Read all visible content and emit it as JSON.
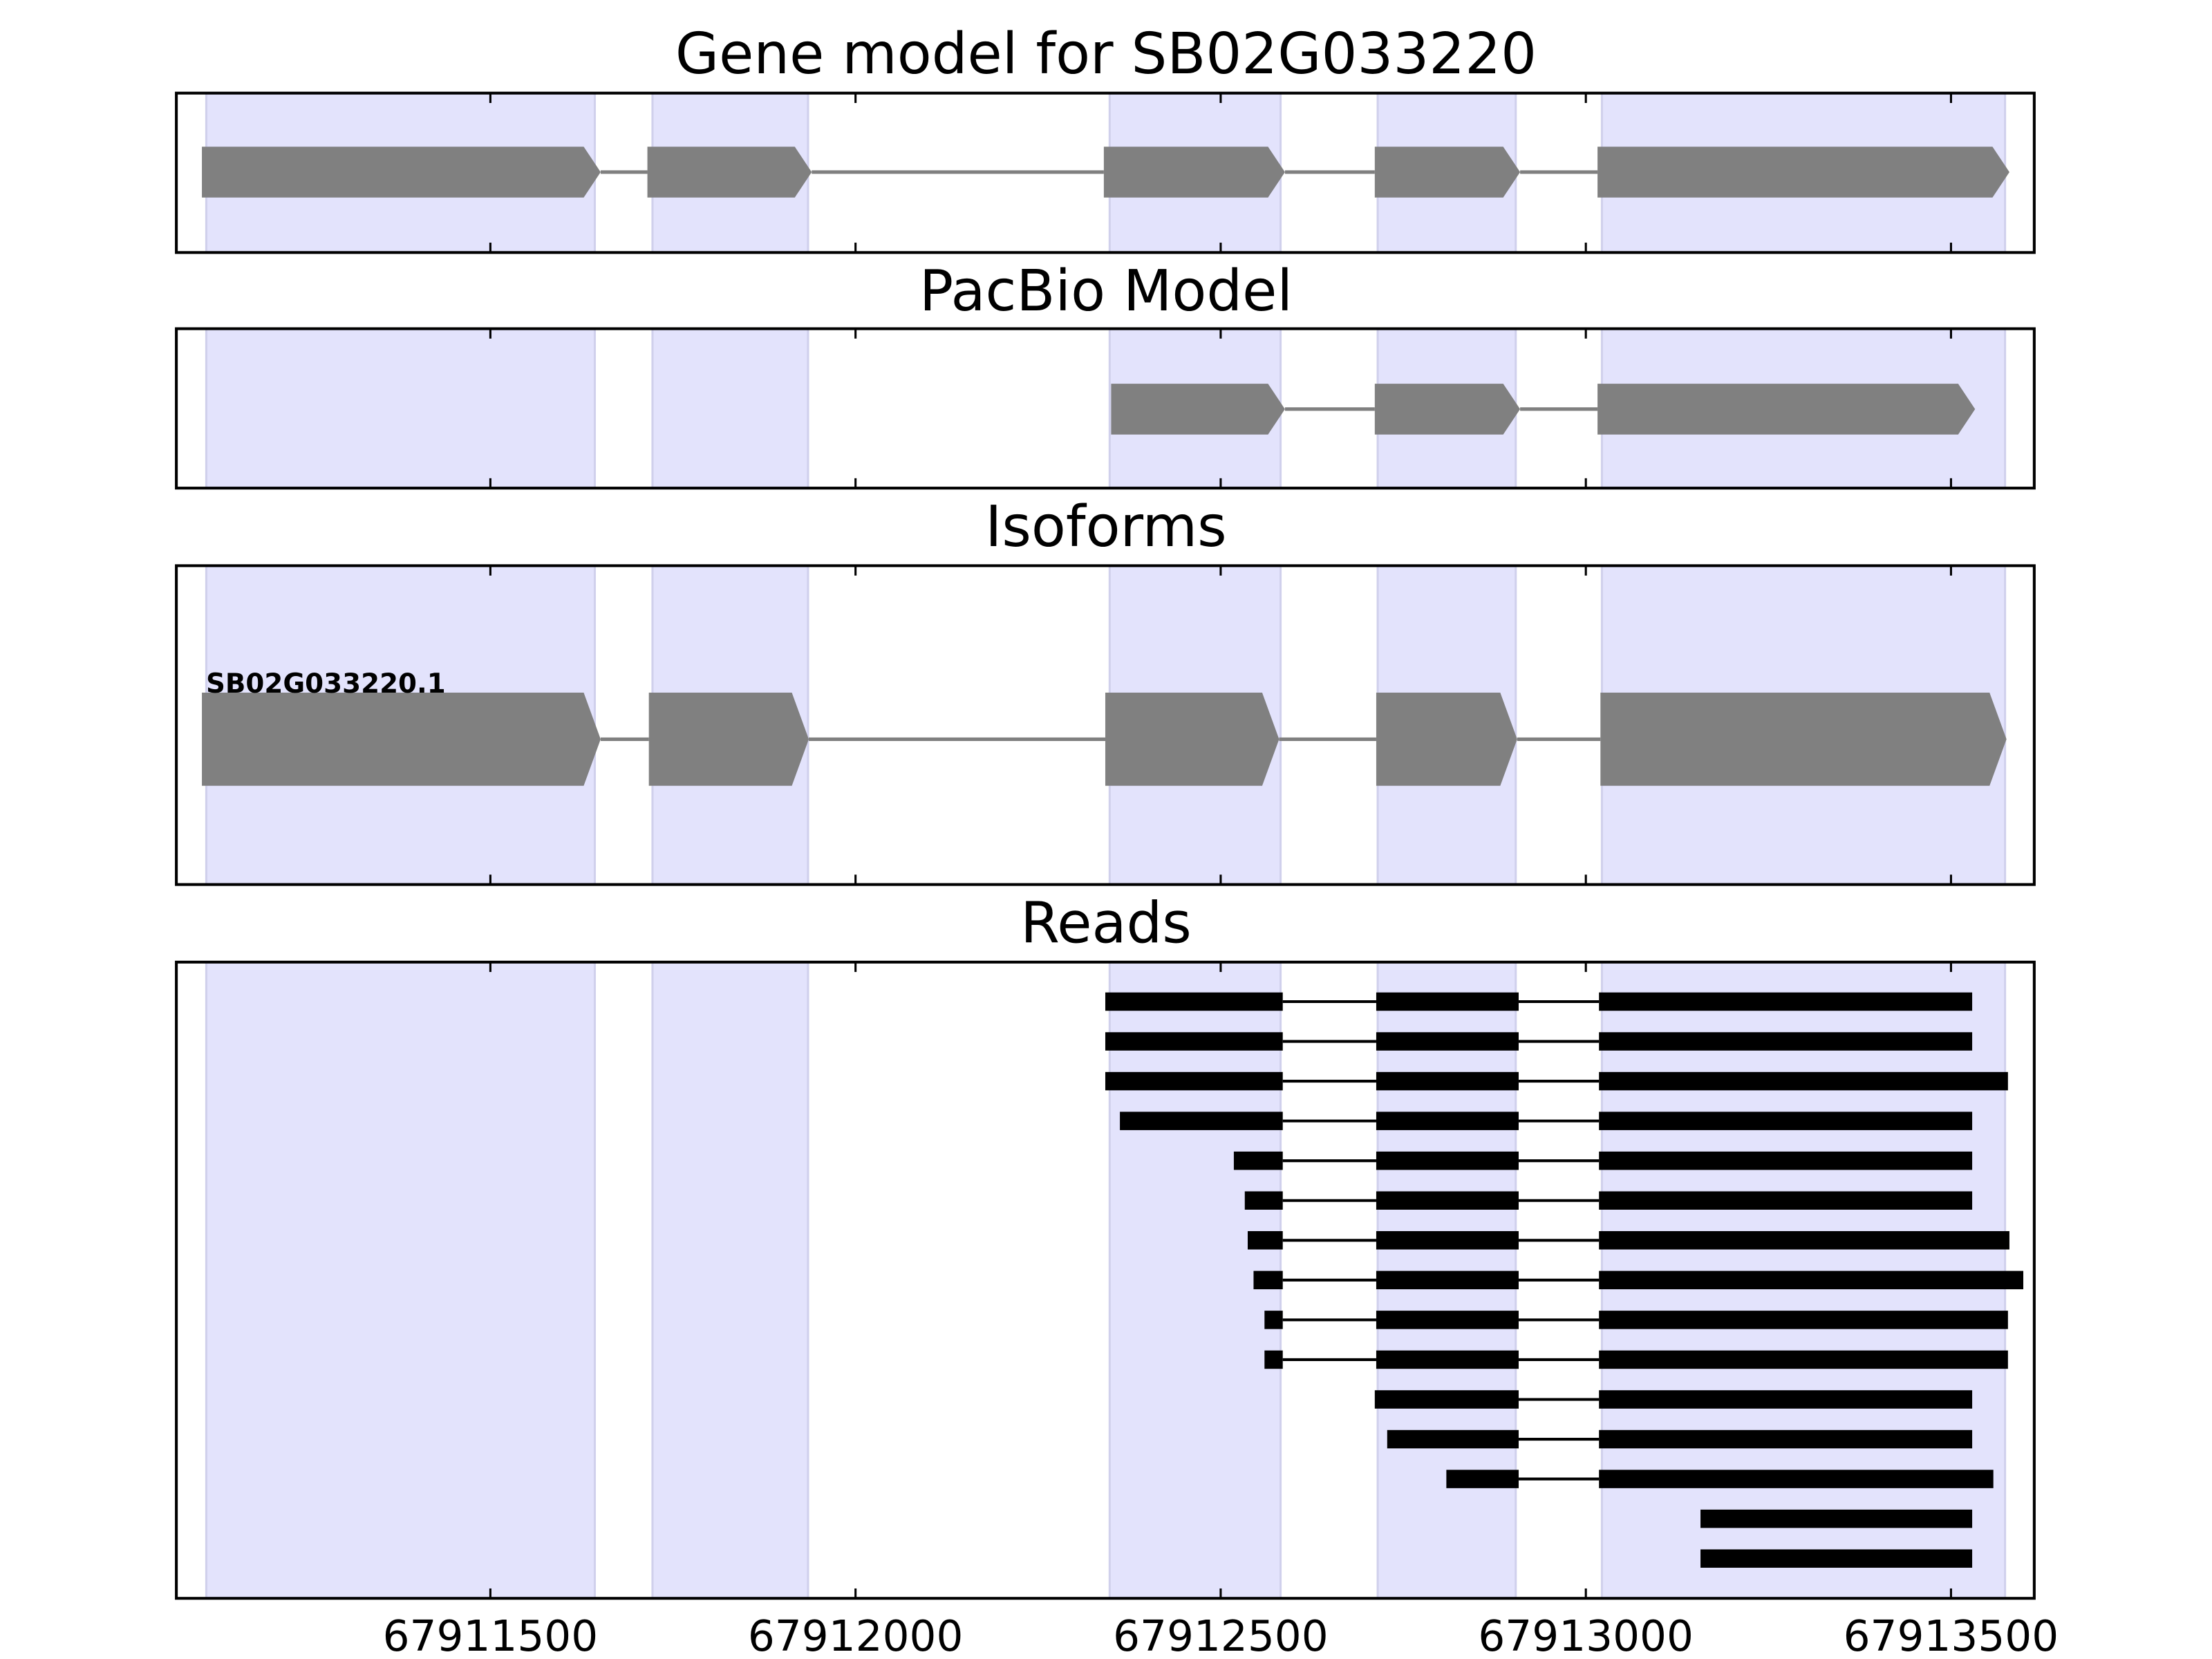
{
  "chart_data": {
    "type": "gene-track",
    "xlim": [
      67911070,
      67913614
    ],
    "x_ticks": [
      67911500,
      67912000,
      67912500,
      67913000,
      67913500
    ],
    "x_tick_labels": [
      "67911500",
      "67912000",
      "67912500",
      "67913000",
      "67913500"
    ],
    "exon_shading": [
      [
        67911111,
        67911643
      ],
      [
        67911722,
        67911935
      ],
      [
        67912348,
        67912582
      ],
      [
        67912715,
        67912904
      ],
      [
        67913022,
        67913574
      ]
    ],
    "colors": {
      "shade": "#e3e3fc",
      "shade_edge": "#d0d0ec",
      "model": "#808080",
      "reads": "#000000"
    },
    "panels": [
      {
        "title": "Gene model for SB02G033220",
        "exons": [
          [
            67911105,
            67911651
          ],
          [
            67911715,
            67911940
          ],
          [
            67912340,
            67912588
          ],
          [
            67912711,
            67912910
          ],
          [
            67913016,
            67913580
          ]
        ]
      },
      {
        "title": "PacBio Model",
        "exons": [
          [
            67912350,
            67912588
          ],
          [
            67912711,
            67912910
          ],
          [
            67913016,
            67913533
          ]
        ]
      },
      {
        "title": "Isoforms",
        "isoform_label": "SB02G033220.1",
        "exons": [
          [
            67911105,
            67911651
          ],
          [
            67911717,
            67911936
          ],
          [
            67912342,
            67912580
          ],
          [
            67912713,
            67912906
          ],
          [
            67913020,
            67913576
          ]
        ]
      },
      {
        "title": "Reads",
        "reads": [
          [
            [
              67912342,
              67912585
            ],
            [
              67912713,
              67912908
            ],
            [
              67913018,
              67913529
            ]
          ],
          [
            [
              67912342,
              67912585
            ],
            [
              67912713,
              67912908
            ],
            [
              67913018,
              67913529
            ]
          ],
          [
            [
              67912342,
              67912585
            ],
            [
              67912713,
              67912908
            ],
            [
              67913018,
              67913578
            ]
          ],
          [
            [
              67912362,
              67912585
            ],
            [
              67912713,
              67912908
            ],
            [
              67913018,
              67913529
            ]
          ],
          [
            [
              67912518,
              67912585
            ],
            [
              67912713,
              67912908
            ],
            [
              67913018,
              67913529
            ]
          ],
          [
            [
              67912533,
              67912585
            ],
            [
              67912713,
              67912908
            ],
            [
              67913018,
              67913529
            ]
          ],
          [
            [
              67912537,
              67912585
            ],
            [
              67912713,
              67912908
            ],
            [
              67913018,
              67913580
            ]
          ],
          [
            [
              67912545,
              67912585
            ],
            [
              67912713,
              67912908
            ],
            [
              67913018,
              67913599
            ]
          ],
          [
            [
              67912560,
              67912585
            ],
            [
              67912713,
              67912908
            ],
            [
              67913018,
              67913578
            ]
          ],
          [
            [
              67912560,
              67912585
            ],
            [
              67912713,
              67912908
            ],
            [
              67913018,
              67913578
            ]
          ],
          [
            [
              67912711,
              67912908
            ],
            [
              67913018,
              67913529
            ]
          ],
          [
            [
              67912728,
              67912908
            ],
            [
              67913018,
              67913529
            ]
          ],
          [
            [
              67912809,
              67912908
            ],
            [
              67913018,
              67913558
            ]
          ],
          [
            [
              67913157,
              67913529
            ]
          ],
          [
            [
              67913157,
              67913529
            ]
          ]
        ]
      }
    ]
  }
}
